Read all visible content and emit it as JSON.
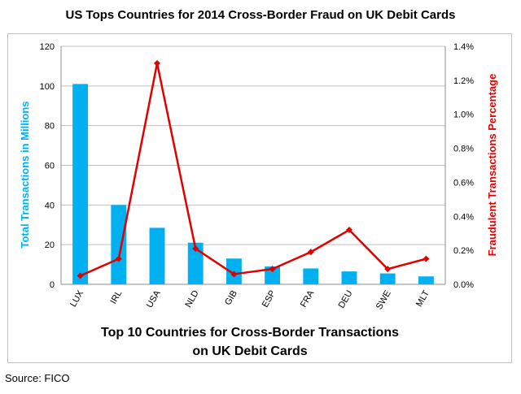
{
  "title": "US Tops Countries  for 2014 Cross-Border  Fraud  on UK Debit Cards",
  "source": "Source: FICO",
  "chart_data": {
    "type": "bar",
    "categories": [
      "LUX",
      "IRL",
      "USA",
      "NLD",
      "GIB",
      "ESP",
      "FRA",
      "DEU",
      "SWE",
      "MLT"
    ],
    "series": [
      {
        "type": "bar",
        "axis": "left",
        "color": "#00b0f0",
        "values": [
          101,
          40,
          28.5,
          21,
          13,
          9,
          8,
          6.5,
          5.5,
          4
        ]
      },
      {
        "type": "line",
        "axis": "right",
        "color": "#e00000",
        "values": [
          0.05,
          0.15,
          1.3,
          0.21,
          0.06,
          0.09,
          0.19,
          0.32,
          0.09,
          0.15
        ]
      }
    ],
    "ylabel": "Total Transactions in Millions",
    "ylim": [
      0,
      120
    ],
    "yticks": [
      "0",
      "20",
      "40",
      "60",
      "80",
      "100",
      "120"
    ],
    "y2label": "Fraudulent Transactions Percentage",
    "y2lim": [
      0,
      1.4
    ],
    "y2ticks": [
      "0.0%",
      "0.2%",
      "0.4%",
      "0.6%",
      "0.8%",
      "1.0%",
      "1.2%",
      "1.4%"
    ],
    "xlabel_line1": "Top 10 Countries for Cross-Border Transactions",
    "xlabel_line2": "on UK Debit Cards",
    "grid": true,
    "legend": "none"
  }
}
